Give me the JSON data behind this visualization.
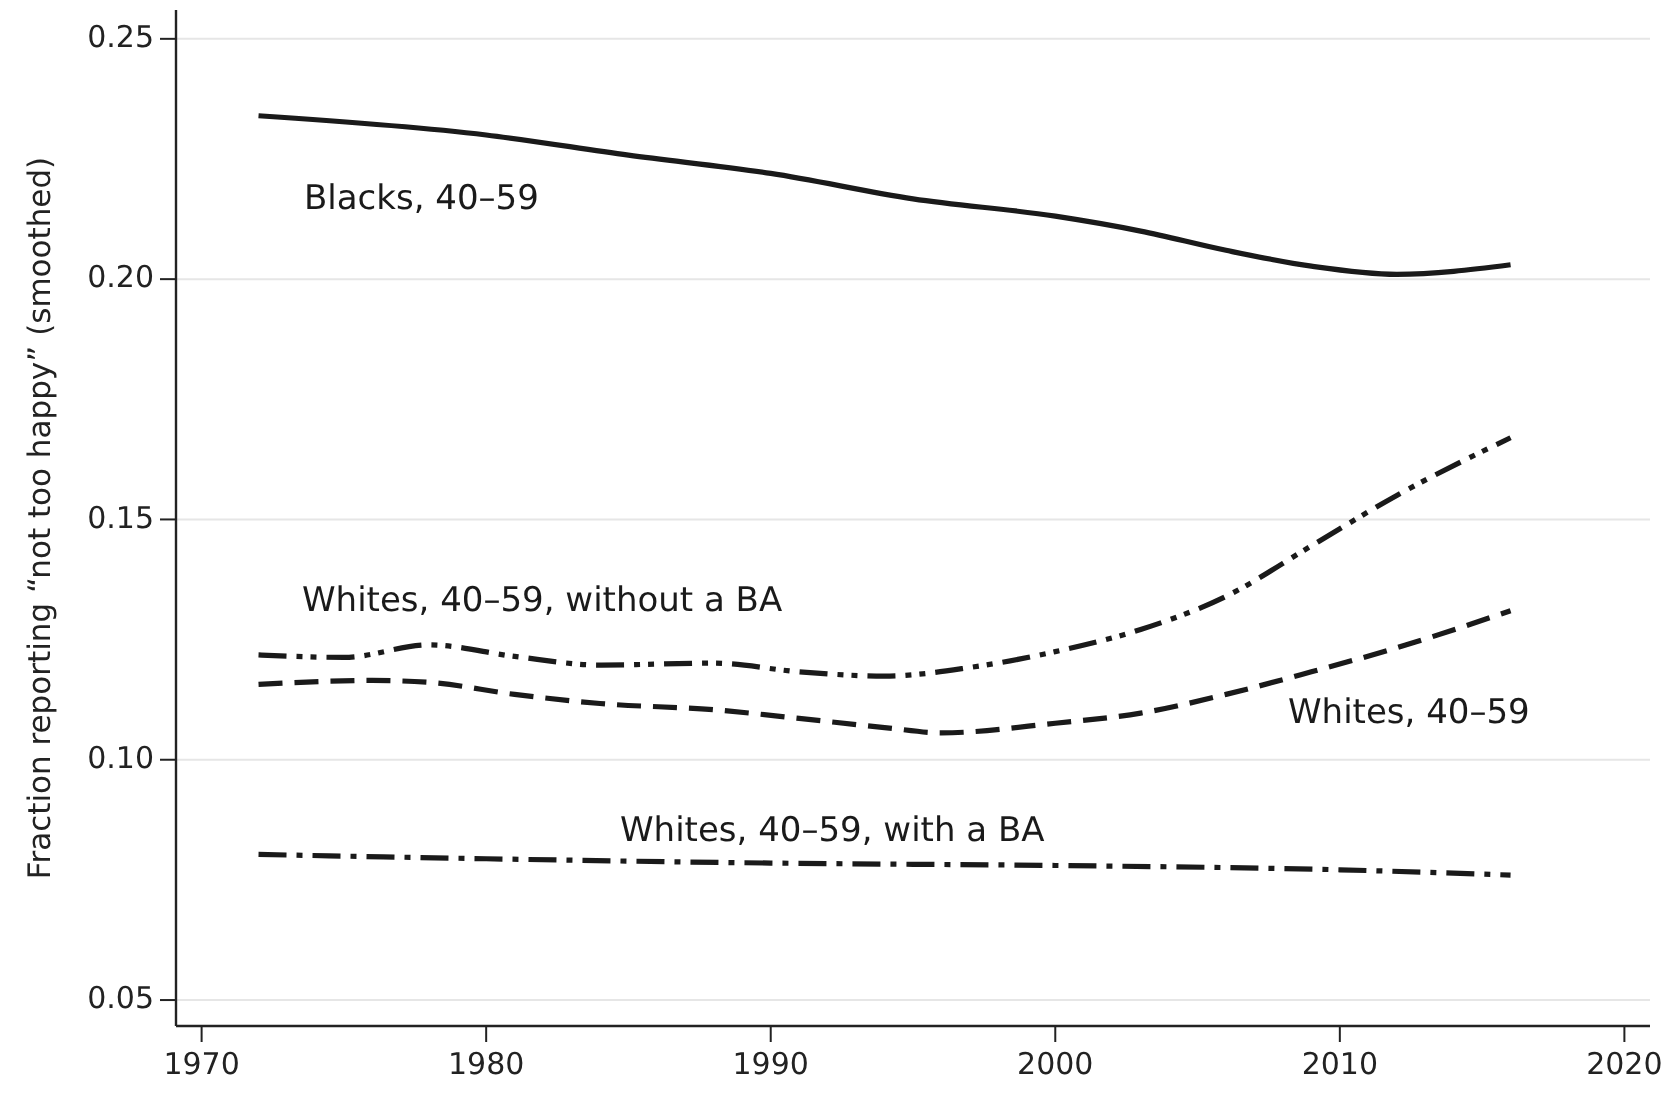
{
  "chart_data": {
    "type": "line",
    "ylabel": "Fraction reporting “not too happy” (smoothed)",
    "xlim": [
      1969.1,
      2020.9
    ],
    "ylim": [
      0.0446,
      0.256
    ],
    "xticks": [
      1970,
      1980,
      1990,
      2000,
      2010,
      2020
    ],
    "yticks": [
      {
        "value": 0.05,
        "label": "0.05"
      },
      {
        "value": 0.1,
        "label": "0.10"
      },
      {
        "value": 0.15,
        "label": "0.15"
      },
      {
        "value": 0.2,
        "label": "0.20"
      },
      {
        "value": 0.25,
        "label": "0.25"
      }
    ],
    "grid": "y",
    "marker": "none",
    "series": [
      {
        "name": "Blacks, 40–59",
        "color": "#1a1a1a",
        "line_style": "solid",
        "x": [
          1972,
          1980,
          1985,
          1990,
          1995,
          2000,
          2003,
          2006,
          2009,
          2012,
          2016
        ],
        "values": [
          0.234,
          0.23,
          0.2258,
          0.222,
          0.2167,
          0.2131,
          0.21,
          0.206,
          0.2027,
          0.201,
          0.203
        ]
      },
      {
        "name": "Whites, 40–59, without a BA",
        "color": "#1a1a1a",
        "line_style": "dashdotdot",
        "x": [
          1972,
          1975,
          1978,
          1981,
          1984,
          1988,
          1991,
          1994,
          1997,
          2000,
          2003,
          2006,
          2009,
          2012,
          2016
        ],
        "values": [
          0.1218,
          0.1213,
          0.1239,
          0.1215,
          0.1197,
          0.1201,
          0.1183,
          0.1174,
          0.1192,
          0.1225,
          0.1271,
          0.134,
          0.1445,
          0.155,
          0.167
        ]
      },
      {
        "name": "Whites, 40–59",
        "color": "#1a1a1a",
        "line_style": "dashed",
        "x": [
          1972,
          1976,
          1978,
          1981,
          1984,
          1988,
          1991,
          1994,
          1996,
          2000,
          2003,
          2006,
          2009,
          2012,
          2016
        ],
        "values": [
          0.1157,
          0.1165,
          0.1161,
          0.1136,
          0.1117,
          0.1104,
          0.1086,
          0.1067,
          0.1056,
          0.1076,
          0.1097,
          0.1136,
          0.1183,
          0.1233,
          0.131
        ]
      },
      {
        "name": "Whites, 40–59, with a BA",
        "color": "#1a1a1a",
        "line_style": "dashdot",
        "x": [
          1972,
          1980,
          1990,
          2000,
          2010,
          2016
        ],
        "values": [
          0.0803,
          0.0794,
          0.0785,
          0.078,
          0.0771,
          0.076
        ]
      }
    ]
  }
}
